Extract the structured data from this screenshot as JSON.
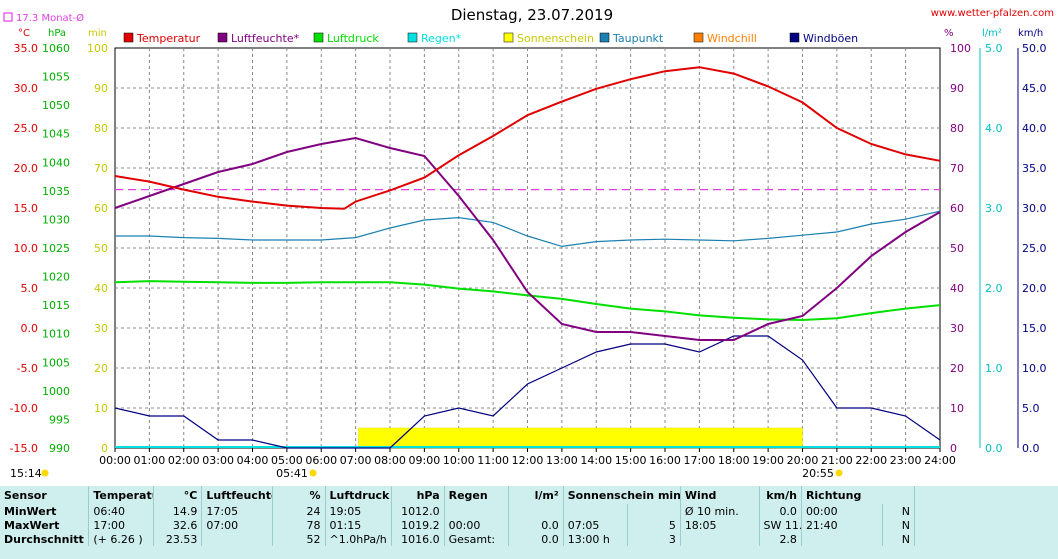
{
  "header": {
    "title": "Dienstag, 23.07.2019",
    "website": "www.wetter-pfalzen.com",
    "monthly_avg": "17.3 Monat-Ø",
    "unit_c": "°C",
    "unit_hpa": "hPa",
    "unit_min": "min",
    "unit_pct": "%",
    "unit_lm2": "l/m²",
    "unit_kmh": "km/h",
    "time_left": "15:14",
    "sunrise": "05:41",
    "sunset": "20:55"
  },
  "colors": {
    "temperature": "#e00000",
    "humidity": "#800080",
    "pressure": "#00e000",
    "rain": "#00e0e0",
    "sunshine": "#ffff00",
    "dewpoint": "#1a80b0",
    "windchill": "#ff8000",
    "gusts": "#000080",
    "monthly_avg": "#e040e0",
    "stats_bg": "#cfefef"
  },
  "legend": [
    {
      "label": "Temperatur",
      "color": "#e00000"
    },
    {
      "label": "Luftfeuchte*",
      "color": "#800080"
    },
    {
      "label": "Luftdruck",
      "color": "#00e000"
    },
    {
      "label": "Regen*",
      "color": "#00e0e0"
    },
    {
      "label": "Sonnenschein",
      "color": "#ffff00"
    },
    {
      "label": "Taupunkt",
      "color": "#1a80b0"
    },
    {
      "label": "Windchill",
      "color": "#ff8000"
    },
    {
      "label": "Windböen",
      "color": "#000080"
    }
  ],
  "chart_data": {
    "type": "line",
    "title": "Dienstag, 23.07.2019",
    "x_unit": "time of day",
    "x_ticks": [
      "00:00",
      "01:00",
      "02:00",
      "03:00",
      "04:00",
      "05:00",
      "06:00",
      "07:00",
      "08:00",
      "09:00",
      "10:00",
      "11:00",
      "12:00",
      "13:00",
      "14:00",
      "15:00",
      "16:00",
      "17:00",
      "18:00",
      "19:00",
      "20:00",
      "21:00",
      "22:00",
      "23:00",
      "24:00"
    ],
    "axes": {
      "temperature": {
        "unit": "°C",
        "ylim": [
          -15,
          35
        ],
        "ticks": [
          "35.0",
          "30.0",
          "25.0",
          "20.0",
          "15.0",
          "10.0",
          "5.0",
          "0.0",
          "-5.0",
          "-10.0",
          "-15.0"
        ]
      },
      "pressure": {
        "unit": "hPa",
        "ylim": [
          990,
          1060
        ],
        "ticks": [
          "1060",
          "1055",
          "1050",
          "1045",
          "1040",
          "1035",
          "1030",
          "1025",
          "1020",
          "1015",
          "1010",
          "1005",
          "1000",
          "995",
          "990"
        ]
      },
      "sunshine": {
        "unit": "min",
        "ylim": [
          0,
          100
        ],
        "ticks": [
          "100",
          "90",
          "80",
          "70",
          "60",
          "50",
          "40",
          "30",
          "20",
          "10",
          "0"
        ]
      },
      "humidity": {
        "unit": "%",
        "ylim": [
          0,
          100
        ],
        "ticks": [
          "100",
          "90",
          "80",
          "70",
          "60",
          "50",
          "40",
          "30",
          "20",
          "10",
          "0"
        ]
      },
      "rain": {
        "unit": "l/m²",
        "ylim": [
          0,
          5
        ],
        "ticks": [
          "5.0",
          "4.0",
          "3.0",
          "2.0",
          "1.0",
          "0.0"
        ]
      },
      "wind": {
        "unit": "km/h",
        "ylim": [
          0,
          50
        ],
        "ticks": [
          "50.0",
          "45.0",
          "40.0",
          "35.0",
          "30.0",
          "25.0",
          "20.0",
          "15.0",
          "10.0",
          "5.0",
          "0.0"
        ]
      }
    },
    "grid": true,
    "monthly_avg_temperature": 17.3,
    "series": [
      {
        "name": "Temperatur",
        "axis": "temperature",
        "color": "#e00000",
        "x": [
          "00:00",
          "01:00",
          "02:00",
          "03:00",
          "04:00",
          "05:00",
          "06:00",
          "06:40",
          "07:00",
          "08:00",
          "09:00",
          "10:00",
          "11:00",
          "12:00",
          "13:00",
          "14:00",
          "15:00",
          "16:00",
          "17:00",
          "18:00",
          "19:00",
          "20:00",
          "21:00",
          "22:00",
          "23:00",
          "24:00"
        ],
        "values": [
          19.0,
          18.3,
          17.3,
          16.4,
          15.8,
          15.3,
          15.0,
          14.9,
          15.8,
          17.2,
          18.8,
          21.6,
          24.0,
          26.6,
          28.3,
          29.9,
          31.1,
          32.1,
          32.6,
          31.8,
          30.2,
          28.2,
          25.0,
          23.0,
          21.7,
          20.9
        ]
      },
      {
        "name": "Luftfeuchte*",
        "axis": "humidity",
        "color": "#800080",
        "x": [
          "00:00",
          "01:00",
          "02:00",
          "03:00",
          "04:00",
          "05:00",
          "06:00",
          "07:00",
          "08:00",
          "09:00",
          "10:00",
          "11:00",
          "12:00",
          "13:00",
          "14:00",
          "15:00",
          "16:00",
          "17:00",
          "18:00",
          "19:00",
          "20:00",
          "21:00",
          "22:00",
          "23:00",
          "24:00"
        ],
        "values": [
          60,
          63,
          66,
          69,
          71,
          74,
          76,
          77.5,
          75,
          73,
          63,
          52,
          39,
          31,
          29,
          29,
          28,
          27,
          27,
          31,
          33,
          40,
          48,
          54,
          59
        ]
      },
      {
        "name": "Luftdruck",
        "axis": "pressure",
        "color": "#00e000",
        "x": [
          "00:00",
          "01:00",
          "02:00",
          "03:00",
          "04:00",
          "05:00",
          "06:00",
          "07:00",
          "08:00",
          "09:00",
          "10:00",
          "11:00",
          "12:00",
          "13:00",
          "14:00",
          "15:00",
          "16:00",
          "17:00",
          "18:00",
          "19:00",
          "20:00",
          "21:00",
          "22:00",
          "23:00",
          "24:00"
        ],
        "values": [
          1019.0,
          1019.2,
          1019.1,
          1019.0,
          1018.9,
          1018.9,
          1019.0,
          1019.0,
          1019.0,
          1018.6,
          1017.9,
          1017.4,
          1016.7,
          1016.1,
          1015.2,
          1014.4,
          1013.9,
          1013.2,
          1012.8,
          1012.5,
          1012.4,
          1012.7,
          1013.6,
          1014.4,
          1015.0
        ]
      },
      {
        "name": "Taupunkt",
        "axis": "temperature",
        "color": "#1a80b0",
        "x": [
          "00:00",
          "01:00",
          "02:00",
          "03:00",
          "04:00",
          "05:00",
          "06:00",
          "07:00",
          "08:00",
          "09:00",
          "10:00",
          "11:00",
          "12:00",
          "13:00",
          "14:00",
          "15:00",
          "16:00",
          "17:00",
          "18:00",
          "19:00",
          "20:00",
          "21:00",
          "22:00",
          "23:00",
          "24:00"
        ],
        "values": [
          11.5,
          11.5,
          11.3,
          11.2,
          11.0,
          11.0,
          11.0,
          11.3,
          12.5,
          13.5,
          13.8,
          13.2,
          11.5,
          10.2,
          10.8,
          11.0,
          11.1,
          11.0,
          10.9,
          11.2,
          11.6,
          12.0,
          13.0,
          13.6,
          14.6
        ]
      },
      {
        "name": "Windböen",
        "axis": "wind",
        "color": "#000080",
        "x": [
          "00:00",
          "01:00",
          "02:00",
          "03:00",
          "04:00",
          "05:00",
          "06:00",
          "07:00",
          "08:00",
          "09:00",
          "10:00",
          "11:00",
          "12:00",
          "13:00",
          "14:00",
          "15:00",
          "16:00",
          "17:00",
          "18:00",
          "19:00",
          "20:00",
          "21:00",
          "22:00",
          "23:00",
          "24:00"
        ],
        "values": [
          5,
          4,
          4,
          1,
          1,
          0,
          0,
          0,
          0,
          4,
          5,
          4,
          8,
          10,
          12,
          13,
          13,
          12,
          14,
          14,
          11,
          5,
          5,
          4,
          1
        ]
      },
      {
        "name": "Sonnenschein",
        "axis": "sunshine",
        "color": "#ffff00",
        "x": [
          "07:05",
          "20:00"
        ],
        "values": [
          5,
          5
        ]
      }
    ]
  },
  "stats": {
    "headers": {
      "sensor": "Sensor",
      "temp": "Temperatur",
      "temp_unit": "°C",
      "hum": "Luftfeuchte",
      "hum_unit": "%",
      "press": "Luftdruck",
      "press_unit": "hPa",
      "rain": "Regen",
      "rain_unit": "l/m²",
      "sun": "Sonnenschein min",
      "wind": "Wind",
      "wind_unit": "km/h",
      "dir": "Richtung"
    },
    "min": {
      "label": "MinWert",
      "temp_time": "06:40",
      "temp_val": "14.9",
      "hum_time": "17:05",
      "hum_val": "24",
      "press_time": "19:05",
      "press_val": "1012.0",
      "rain_time": "",
      "rain_val": "",
      "sun_time": "",
      "sun_val": "",
      "wind_time": "Ø 10 min.",
      "wind_val": "0.0",
      "dir_time": "00:00",
      "dir_val": "N"
    },
    "max": {
      "label": "MaxWert",
      "temp_time": "17:00",
      "temp_val": "32.6",
      "hum_time": "07:00",
      "hum_val": "78",
      "press_time": "01:15",
      "press_val": "1019.2",
      "rain_time": "00:00",
      "rain_val": "0.0",
      "sun_time": "07:05",
      "sun_val": "5",
      "wind_time": "18:05",
      "wind_val": "SW 11.0",
      "dir_time": "21:40",
      "dir_val": "N"
    },
    "avg": {
      "label": "Durchschnitt",
      "temp_time": "(+ 6.26 )",
      "temp_val": "23.53",
      "hum_time": "",
      "hum_val": "52",
      "press_time": "^1.0hPa/h",
      "press_val": "1016.0",
      "rain_time": "Gesamt:",
      "rain_val": "0.0",
      "sun_time": "13:00 h",
      "sun_val": "3",
      "wind_time": "",
      "wind_val": "2.8",
      "dir_time": "",
      "dir_val": "N"
    }
  }
}
